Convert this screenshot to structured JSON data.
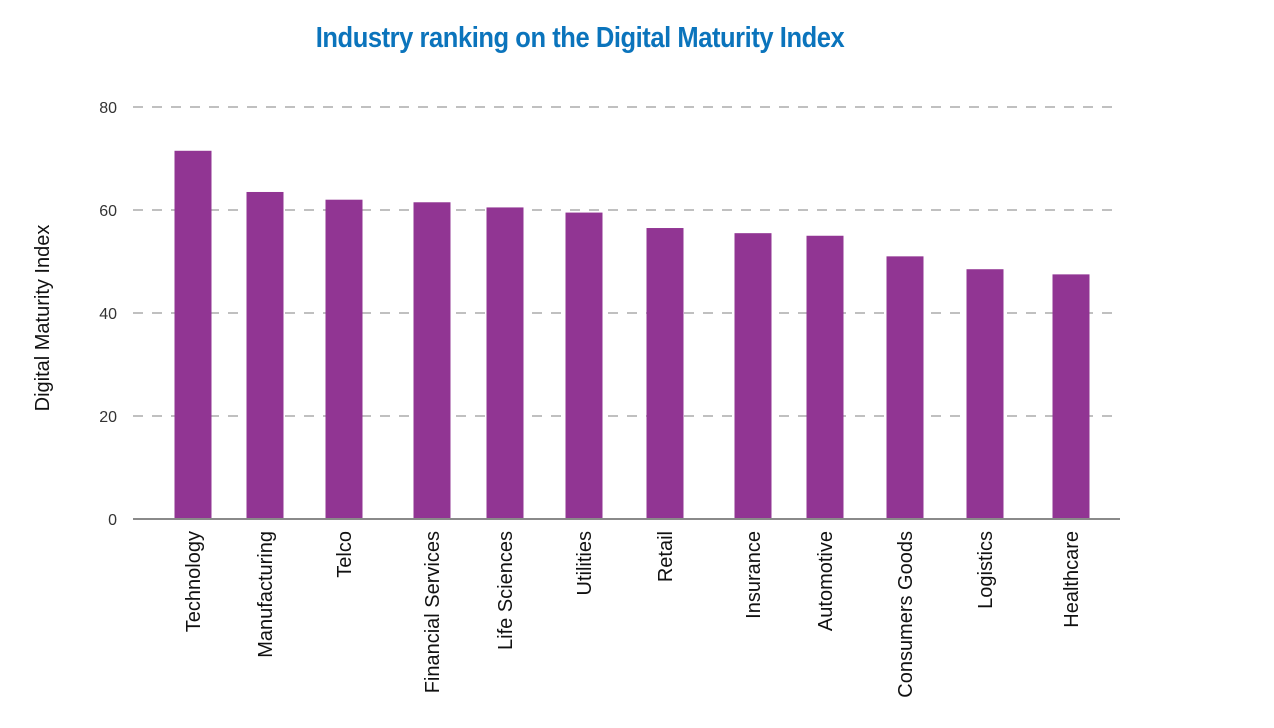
{
  "chart_data": {
    "type": "bar",
    "title": "Industry ranking on the Digital Maturity Index",
    "xlabel": "",
    "ylabel": "Digital Maturity Index",
    "ylim": [
      0,
      80
    ],
    "yticks": [
      0,
      20,
      40,
      60,
      80
    ],
    "grid": true,
    "legend": "none",
    "categories": [
      "Technology",
      "Manufacturing",
      "Telco",
      "Financial Services",
      "Life Sciences",
      "Utilities",
      "Retail",
      "Insurance",
      "Automotive",
      "Consumers Goods",
      "Logistics",
      "Healthcare"
    ],
    "values": [
      71.5,
      63.5,
      62,
      61.5,
      60.5,
      59.5,
      56.5,
      55.5,
      55,
      51,
      48.5,
      47.5
    ]
  },
  "colors": {
    "bar": "#913593",
    "title": "#0b74bc",
    "grid": "#9a9a9a",
    "axis": "#8a8a8a"
  }
}
